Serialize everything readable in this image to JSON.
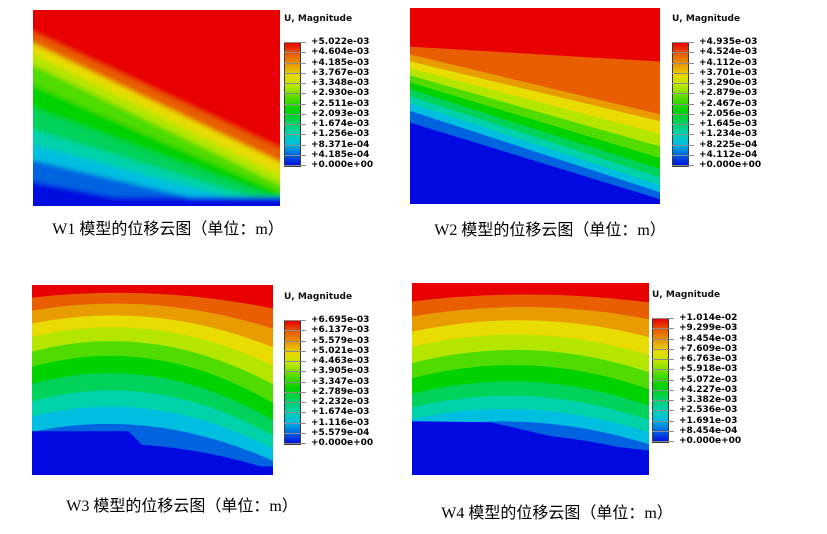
{
  "chart_data": [
    {
      "type": "heatmap",
      "model": "W1",
      "legend_title": "U, Magnitude",
      "levels": [
        "+5.022e-03",
        "+4.604e-03",
        "+4.185e-03",
        "+3.767e-03",
        "+3.348e-03",
        "+2.930e-03",
        "+2.511e-03",
        "+2.093e-03",
        "+1.674e-03",
        "+1.256e-03",
        "+8.371e-04",
        "+4.185e-04",
        "+0.000e+00"
      ],
      "caption": "W1 模型的位移云图（单位：m）",
      "units": "m",
      "pattern": "diagonal-smooth",
      "value_range": [
        0,
        0.005022
      ],
      "legend_position": "right-of-plot"
    },
    {
      "type": "heatmap",
      "model": "W2",
      "legend_title": "U, Magnitude",
      "levels": [
        "+4.935e-03",
        "+4.524e-03",
        "+4.112e-03",
        "+3.701e-03",
        "+3.290e-03",
        "+2.879e-03",
        "+2.467e-03",
        "+2.056e-03",
        "+1.645e-03",
        "+1.234e-03",
        "+8.225e-04",
        "+4.112e-04",
        "+0.000e+00"
      ],
      "caption": "W2 模型的位移云图（单位：m）",
      "units": "m",
      "pattern": "fan",
      "value_range": [
        0,
        0.004935
      ],
      "legend_position": "right-of-plot"
    },
    {
      "type": "heatmap",
      "model": "W3",
      "legend_title": "U, Magnitude",
      "levels": [
        "+6.695e-03",
        "+6.137e-03",
        "+5.579e-03",
        "+5.021e-03",
        "+4.463e-03",
        "+3.905e-03",
        "+3.347e-03",
        "+2.789e-03",
        "+2.232e-03",
        "+1.674e-03",
        "+1.116e-03",
        "+5.579e-04",
        "+0.000e+00"
      ],
      "caption": "W3 模型的位移云图（单位：m）",
      "units": "m",
      "pattern": "arched",
      "value_range": [
        0,
        0.006695
      ],
      "legend_position": "right-of-plot"
    },
    {
      "type": "heatmap",
      "model": "W4",
      "legend_title": "U, Magnitude",
      "levels": [
        "+1.014e-02",
        "+9.299e-03",
        "+8.454e-03",
        "+7.609e-03",
        "+6.763e-03",
        "+5.918e-03",
        "+5.072e-03",
        "+4.227e-03",
        "+3.382e-03",
        "+2.536e-03",
        "+1.691e-03",
        "+8.454e-04",
        "+0.000e+00"
      ],
      "caption": "W4 模型的位移云图（单位：m）",
      "units": "m",
      "pattern": "arched-flat",
      "value_range": [
        0,
        0.01014
      ],
      "legend_position": "right-of-plot"
    }
  ],
  "colors": {
    "bands": [
      "#e80000",
      "#e85e00",
      "#e89c00",
      "#e8dc00",
      "#b4e600",
      "#50dc00",
      "#00d200",
      "#00d25a",
      "#00d2aa",
      "#00bee0",
      "#0064e0",
      "#000ae0"
    ],
    "tick": "#8c8c8c",
    "background": "#ffffff"
  }
}
